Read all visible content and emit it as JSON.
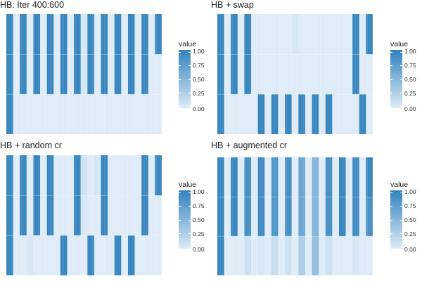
{
  "legend_title": "value",
  "legend_ticks": [
    "1.00",
    "0.75",
    "0.50",
    "0.25",
    "0.00"
  ],
  "colors": {
    "low": "#deebf7",
    "high": "#3182bd",
    "gridline": "#ffffff"
  },
  "chart_data": [
    {
      "type": "heatmap",
      "title": "HB: Iter 400:600",
      "value_range": [
        0,
        1
      ],
      "columns": [
        {
          "top": 1.0,
          "mid": 1.0,
          "bottom": 1.0
        },
        {
          "top": 0.0,
          "mid": 0.0,
          "bottom": 0.0
        },
        {
          "top": 1.0,
          "mid": 1.0,
          "bottom": 0.0
        },
        {
          "top": 0.0,
          "mid": 0.0,
          "bottom": 0.0
        },
        {
          "top": 1.0,
          "mid": 1.0,
          "bottom": 0.0
        },
        {
          "top": 0.0,
          "mid": 0.0,
          "bottom": 0.0
        },
        {
          "top": 1.0,
          "mid": 1.0,
          "bottom": 0.0
        },
        {
          "top": 0.0,
          "mid": 0.0,
          "bottom": 0.0
        },
        {
          "top": 1.0,
          "mid": 1.0,
          "bottom": 0.0
        },
        {
          "top": 0.0,
          "mid": 0.0,
          "bottom": 0.0
        },
        {
          "top": 1.0,
          "mid": 1.0,
          "bottom": 0.0
        },
        {
          "top": 0.05,
          "mid": 0.05,
          "bottom": 0.0
        },
        {
          "top": 1.0,
          "mid": 1.0,
          "bottom": 0.0
        },
        {
          "top": 0.0,
          "mid": 0.0,
          "bottom": 0.0
        },
        {
          "top": 1.0,
          "mid": 1.0,
          "bottom": 0.0
        },
        {
          "top": 0.0,
          "mid": 0.0,
          "bottom": 0.0
        },
        {
          "top": 1.0,
          "mid": 1.0,
          "bottom": 0.0
        },
        {
          "top": 0.0,
          "mid": 0.0,
          "bottom": 0.0
        },
        {
          "top": 1.0,
          "mid": 1.0,
          "bottom": 0.0
        },
        {
          "top": 0.0,
          "mid": 0.0,
          "bottom": 0.0
        },
        {
          "top": 1.0,
          "mid": 1.0,
          "bottom": 0.0
        },
        {
          "top": 0.0,
          "mid": 0.0,
          "bottom": 0.0
        },
        {
          "top": 1.0,
          "mid": 0.0,
          "bottom": 0.0
        }
      ]
    },
    {
      "type": "heatmap",
      "title": "HB + swap",
      "value_range": [
        0,
        1
      ],
      "columns": [
        {
          "top": 1.0,
          "mid": 1.0,
          "bottom": 1.0
        },
        {
          "top": 0.0,
          "mid": 0.0,
          "bottom": 0.0
        },
        {
          "top": 1.0,
          "mid": 1.0,
          "bottom": 0.0
        },
        {
          "top": 0.0,
          "mid": 0.0,
          "bottom": 0.0
        },
        {
          "top": 1.0,
          "mid": 1.0,
          "bottom": 0.0
        },
        {
          "top": 0.0,
          "mid": 0.0,
          "bottom": 0.0
        },
        {
          "top": 0.0,
          "mid": 0.0,
          "bottom": 1.0
        },
        {
          "top": 0.0,
          "mid": 0.0,
          "bottom": 0.0
        },
        {
          "top": 0.0,
          "mid": 0.0,
          "bottom": 1.0
        },
        {
          "top": 0.0,
          "mid": 0.0,
          "bottom": 0.0
        },
        {
          "top": 0.0,
          "mid": 0.0,
          "bottom": 1.0
        },
        {
          "top": 0.05,
          "mid": 0.0,
          "bottom": 0.0
        },
        {
          "top": 0.0,
          "mid": 0.0,
          "bottom": 1.0
        },
        {
          "top": 0.0,
          "mid": 0.0,
          "bottom": 0.0
        },
        {
          "top": 0.0,
          "mid": 0.0,
          "bottom": 1.0
        },
        {
          "top": 0.0,
          "mid": 0.0,
          "bottom": 0.0
        },
        {
          "top": 0.0,
          "mid": 0.0,
          "bottom": 1.0
        },
        {
          "top": 0.0,
          "mid": 0.0,
          "bottom": 0.0
        },
        {
          "top": 0.0,
          "mid": 0.0,
          "bottom": 0.0
        },
        {
          "top": 0.0,
          "mid": 0.0,
          "bottom": 0.0
        },
        {
          "top": 1.0,
          "mid": 1.0,
          "bottom": 0.0
        },
        {
          "top": 0.0,
          "mid": 0.0,
          "bottom": 1.0
        },
        {
          "top": 1.0,
          "mid": 0.0,
          "bottom": 0.0
        }
      ]
    },
    {
      "type": "heatmap",
      "title": "HB + random cr",
      "value_range": [
        0,
        1
      ],
      "columns": [
        {
          "top": 1.0,
          "mid": 1.0,
          "bottom": 1.0
        },
        {
          "top": 0.0,
          "mid": 0.0,
          "bottom": 0.0
        },
        {
          "top": 1.0,
          "mid": 1.0,
          "bottom": 0.0
        },
        {
          "top": 0.0,
          "mid": 0.0,
          "bottom": 0.05
        },
        {
          "top": 1.0,
          "mid": 1.0,
          "bottom": 0.0
        },
        {
          "top": 0.0,
          "mid": 0.0,
          "bottom": 0.0
        },
        {
          "top": 1.0,
          "mid": 1.0,
          "bottom": 0.0
        },
        {
          "top": 0.0,
          "mid": 0.0,
          "bottom": 0.0
        },
        {
          "top": 0.0,
          "mid": 0.0,
          "bottom": 1.0
        },
        {
          "top": 0.0,
          "mid": 0.0,
          "bottom": 0.0
        },
        {
          "top": 1.0,
          "mid": 1.0,
          "bottom": 0.0
        },
        {
          "top": 0.1,
          "mid": 0.05,
          "bottom": 0.0
        },
        {
          "top": 0.0,
          "mid": 0.0,
          "bottom": 1.0
        },
        {
          "top": 0.05,
          "mid": 0.0,
          "bottom": 0.0
        },
        {
          "top": 1.0,
          "mid": 1.0,
          "bottom": 0.0
        },
        {
          "top": 0.0,
          "mid": 0.0,
          "bottom": 0.0
        },
        {
          "top": 0.0,
          "mid": 0.0,
          "bottom": 1.0
        },
        {
          "top": 0.0,
          "mid": 0.0,
          "bottom": 0.0
        },
        {
          "top": 0.0,
          "mid": 0.0,
          "bottom": 1.0
        },
        {
          "top": 0.0,
          "mid": 0.0,
          "bottom": 0.0
        },
        {
          "top": 1.0,
          "mid": 1.0,
          "bottom": 0.0
        },
        {
          "top": 0.0,
          "mid": 0.0,
          "bottom": 0.0
        },
        {
          "top": 1.0,
          "mid": 0.0,
          "bottom": 0.0
        }
      ]
    },
    {
      "type": "heatmap",
      "title": "HB + augmented cr",
      "value_range": [
        0,
        1
      ],
      "columns": [
        {
          "top": 1.0,
          "mid": 1.0,
          "bottom": 1.0
        },
        {
          "top": 0.0,
          "mid": 0.0,
          "bottom": 0.0
        },
        {
          "top": 1.0,
          "mid": 1.0,
          "bottom": 0.0
        },
        {
          "top": 0.0,
          "mid": 0.0,
          "bottom": 0.0
        },
        {
          "top": 0.9,
          "mid": 0.9,
          "bottom": 0.1
        },
        {
          "top": 0.0,
          "mid": 0.0,
          "bottom": 0.0
        },
        {
          "top": 0.95,
          "mid": 0.95,
          "bottom": 0.05
        },
        {
          "top": 0.0,
          "mid": 0.0,
          "bottom": 0.0
        },
        {
          "top": 0.85,
          "mid": 0.85,
          "bottom": 0.15
        },
        {
          "top": 0.0,
          "mid": 0.0,
          "bottom": 0.0
        },
        {
          "top": 0.9,
          "mid": 0.9,
          "bottom": 0.1
        },
        {
          "top": 0.0,
          "mid": 0.0,
          "bottom": 0.0
        },
        {
          "top": 0.7,
          "mid": 0.7,
          "bottom": 0.3
        },
        {
          "top": 0.0,
          "mid": 0.0,
          "bottom": 0.0
        },
        {
          "top": 0.55,
          "mid": 0.55,
          "bottom": 0.45
        },
        {
          "top": 0.0,
          "mid": 0.0,
          "bottom": 0.0
        },
        {
          "top": 0.9,
          "mid": 0.9,
          "bottom": 0.1
        },
        {
          "top": 0.0,
          "mid": 0.0,
          "bottom": 0.0
        },
        {
          "top": 1.0,
          "mid": 1.0,
          "bottom": 0.0
        },
        {
          "top": 0.0,
          "mid": 0.0,
          "bottom": 0.0
        },
        {
          "top": 0.95,
          "mid": 0.95,
          "bottom": 0.05
        },
        {
          "top": 0.0,
          "mid": 0.0,
          "bottom": 0.0
        },
        {
          "top": 1.0,
          "mid": 0.9,
          "bottom": 0.0
        }
      ]
    }
  ]
}
